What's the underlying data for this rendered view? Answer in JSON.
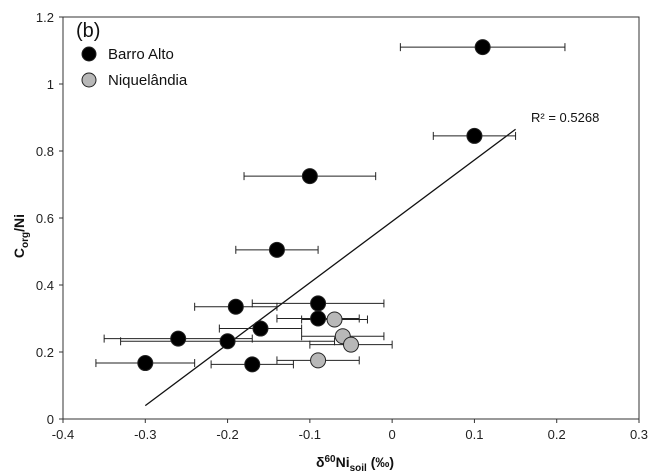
{
  "chart_data": {
    "type": "scatter",
    "panel_label": "(b)",
    "xlabel": "δ60Nisoil (‰)",
    "ylabel": "Corg/Ni",
    "xlim": [
      -0.4,
      0.3
    ],
    "ylim": [
      0,
      1.2
    ],
    "x_ticks": [
      "-0.4",
      "-0.3",
      "-0.2",
      "-0.1",
      "0",
      "0.1",
      "0.2",
      "0.3"
    ],
    "y_ticks": [
      "0",
      "0.2",
      "0.4",
      "0.6",
      "0.8",
      "1",
      "1.2"
    ],
    "grid": false,
    "legend_position": "top-left",
    "series": [
      {
        "name": "Barro Alto",
        "color": "#000000",
        "points": [
          {
            "x": 0.11,
            "y": 1.11,
            "xerr": 0.1
          },
          {
            "x": 0.1,
            "y": 0.845,
            "xerr": 0.05
          },
          {
            "x": -0.1,
            "y": 0.725,
            "xerr": 0.08
          },
          {
            "x": -0.14,
            "y": 0.505,
            "xerr": 0.05
          },
          {
            "x": -0.19,
            "y": 0.335,
            "xerr": 0.05
          },
          {
            "x": -0.09,
            "y": 0.345,
            "xerr": 0.08
          },
          {
            "x": -0.09,
            "y": 0.3,
            "xerr": 0.05
          },
          {
            "x": -0.16,
            "y": 0.27,
            "xerr": 0.05
          },
          {
            "x": -0.26,
            "y": 0.24,
            "xerr": 0.09
          },
          {
            "x": -0.2,
            "y": 0.232,
            "xerr": 0.13
          },
          {
            "x": -0.3,
            "y": 0.167,
            "xerr": 0.06
          },
          {
            "x": -0.17,
            "y": 0.163,
            "xerr": 0.05
          }
        ]
      },
      {
        "name": "Niquelândia",
        "color": "#b8b8b8",
        "points": [
          {
            "x": -0.07,
            "y": 0.297,
            "xerr": 0.04
          },
          {
            "x": -0.06,
            "y": 0.247,
            "xerr": 0.05
          },
          {
            "x": -0.05,
            "y": 0.222,
            "xerr": 0.05
          },
          {
            "x": -0.09,
            "y": 0.175,
            "xerr": 0.05
          }
        ]
      }
    ],
    "trendline": {
      "x": [
        -0.3,
        0.15
      ],
      "y": [
        0.04,
        0.865
      ],
      "label": "R² = 0.5268"
    }
  }
}
